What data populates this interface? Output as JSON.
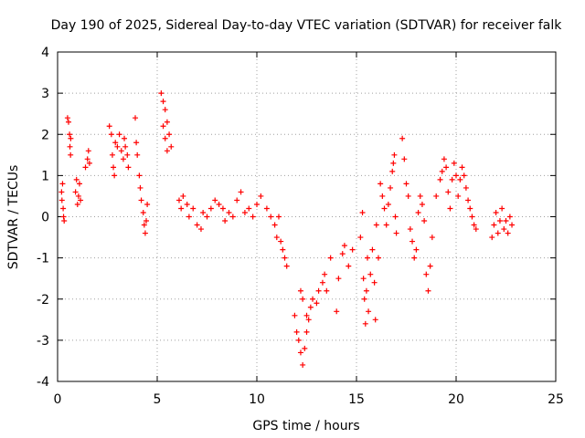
{
  "chart_data": {
    "type": "scatter",
    "title": "Day 190 of 2025, Sidereal Day-to-day VTEC variation (SDTVAR) for receiver falk",
    "xlabel": "GPS time / hours",
    "ylabel": "SDTVAR / TECUs",
    "xlim": [
      0,
      25
    ],
    "ylim": [
      -4,
      4
    ],
    "x_ticks": [
      0,
      5,
      10,
      15,
      20,
      25
    ],
    "x_tick_labels": [
      "0",
      "5",
      "10",
      "15",
      "20",
      "25"
    ],
    "y_ticks": [
      -4,
      -3,
      -2,
      -1,
      0,
      1,
      2,
      3,
      4
    ],
    "y_tick_labels": [
      "-4",
      "-3",
      "-2",
      "-1",
      "0",
      "1",
      "2",
      "3",
      "4"
    ],
    "grid": true,
    "marker": "+",
    "series": [
      {
        "name": "SDTVAR",
        "color": "#ff0000",
        "points": [
          [
            0.2,
            0.6
          ],
          [
            0.22,
            0.4
          ],
          [
            0.25,
            0.8
          ],
          [
            0.28,
            0.2
          ],
          [
            0.3,
            0.0
          ],
          [
            0.33,
            -0.1
          ],
          [
            0.5,
            2.4
          ],
          [
            0.55,
            2.3
          ],
          [
            0.6,
            2.0
          ],
          [
            0.62,
            1.7
          ],
          [
            0.65,
            1.5
          ],
          [
            0.66,
            1.9
          ],
          [
            0.9,
            0.6
          ],
          [
            0.95,
            0.9
          ],
          [
            1.0,
            0.3
          ],
          [
            1.05,
            0.5
          ],
          [
            1.1,
            0.8
          ],
          [
            1.15,
            0.4
          ],
          [
            1.4,
            1.2
          ],
          [
            1.5,
            1.4
          ],
          [
            1.55,
            1.6
          ],
          [
            1.6,
            1.3
          ],
          [
            2.6,
            2.2
          ],
          [
            2.7,
            2.0
          ],
          [
            2.75,
            1.5
          ],
          [
            2.8,
            1.2
          ],
          [
            2.85,
            1.0
          ],
          [
            2.9,
            1.8
          ],
          [
            3.0,
            1.7
          ],
          [
            3.1,
            2.0
          ],
          [
            3.2,
            1.6
          ],
          [
            3.3,
            1.4
          ],
          [
            3.35,
            1.9
          ],
          [
            3.4,
            1.7
          ],
          [
            3.5,
            1.5
          ],
          [
            3.55,
            1.2
          ],
          [
            3.9,
            2.4
          ],
          [
            3.95,
            1.8
          ],
          [
            4.0,
            1.5
          ],
          [
            4.1,
            1.0
          ],
          [
            4.15,
            0.7
          ],
          [
            4.2,
            0.4
          ],
          [
            4.3,
            0.1
          ],
          [
            4.35,
            -0.2
          ],
          [
            4.4,
            -0.4
          ],
          [
            4.45,
            -0.1
          ],
          [
            4.5,
            0.3
          ],
          [
            5.2,
            3.0
          ],
          [
            5.3,
            2.8
          ],
          [
            5.4,
            2.6
          ],
          [
            5.5,
            2.3
          ],
          [
            5.6,
            2.0
          ],
          [
            5.7,
            1.7
          ],
          [
            5.3,
            2.2
          ],
          [
            5.4,
            1.9
          ],
          [
            5.5,
            1.6
          ],
          [
            6.1,
            0.4
          ],
          [
            6.2,
            0.2
          ],
          [
            6.3,
            0.5
          ],
          [
            6.5,
            0.3
          ],
          [
            6.6,
            0.0
          ],
          [
            6.8,
            0.2
          ],
          [
            7.0,
            -0.2
          ],
          [
            7.2,
            -0.3
          ],
          [
            7.3,
            0.1
          ],
          [
            7.5,
            0.0
          ],
          [
            7.7,
            0.2
          ],
          [
            7.9,
            0.4
          ],
          [
            8.1,
            0.3
          ],
          [
            8.3,
            0.2
          ],
          [
            8.4,
            -0.1
          ],
          [
            8.6,
            0.1
          ],
          [
            8.8,
            0.0
          ],
          [
            9.0,
            0.4
          ],
          [
            9.2,
            0.6
          ],
          [
            9.4,
            0.1
          ],
          [
            9.6,
            0.2
          ],
          [
            9.8,
            0.0
          ],
          [
            10.0,
            0.3
          ],
          [
            10.2,
            0.5
          ],
          [
            10.5,
            0.2
          ],
          [
            10.7,
            0.0
          ],
          [
            10.9,
            -0.2
          ],
          [
            11.0,
            -0.5
          ],
          [
            11.1,
            0.0
          ],
          [
            11.2,
            -0.6
          ],
          [
            11.3,
            -0.8
          ],
          [
            11.4,
            -1.0
          ],
          [
            11.5,
            -1.2
          ],
          [
            11.9,
            -2.4
          ],
          [
            12.0,
            -2.8
          ],
          [
            12.1,
            -3.0
          ],
          [
            12.2,
            -3.3
          ],
          [
            12.3,
            -3.6
          ],
          [
            12.4,
            -3.2
          ],
          [
            12.5,
            -2.8
          ],
          [
            12.6,
            -2.5
          ],
          [
            12.7,
            -2.2
          ],
          [
            12.5,
            -2.4
          ],
          [
            12.3,
            -2.0
          ],
          [
            12.2,
            -1.8
          ],
          [
            12.8,
            -2.0
          ],
          [
            13.0,
            -2.1
          ],
          [
            13.1,
            -1.8
          ],
          [
            13.3,
            -1.6
          ],
          [
            13.4,
            -1.4
          ],
          [
            13.5,
            -1.8
          ],
          [
            13.7,
            -1.0
          ],
          [
            14.0,
            -2.3
          ],
          [
            14.1,
            -1.5
          ],
          [
            14.3,
            -0.9
          ],
          [
            14.4,
            -0.7
          ],
          [
            14.6,
            -1.2
          ],
          [
            14.8,
            -0.8
          ],
          [
            15.2,
            -0.5
          ],
          [
            15.3,
            0.1
          ],
          [
            15.35,
            -1.5
          ],
          [
            15.4,
            -2.0
          ],
          [
            15.45,
            -2.6
          ],
          [
            15.5,
            -1.8
          ],
          [
            15.55,
            -1.0
          ],
          [
            15.6,
            -2.3
          ],
          [
            15.7,
            -1.4
          ],
          [
            15.8,
            -0.8
          ],
          [
            15.9,
            -1.6
          ],
          [
            15.95,
            -2.5
          ],
          [
            16.0,
            -0.2
          ],
          [
            16.1,
            -1.0
          ],
          [
            16.2,
            0.8
          ],
          [
            16.3,
            0.5
          ],
          [
            16.4,
            0.2
          ],
          [
            16.5,
            -0.2
          ],
          [
            16.6,
            0.3
          ],
          [
            16.7,
            0.7
          ],
          [
            16.8,
            1.1
          ],
          [
            16.9,
            1.5
          ],
          [
            16.85,
            1.3
          ],
          [
            16.95,
            0.0
          ],
          [
            17.0,
            -0.4
          ],
          [
            17.3,
            1.9
          ],
          [
            17.4,
            1.4
          ],
          [
            17.5,
            0.8
          ],
          [
            17.6,
            0.5
          ],
          [
            17.7,
            -0.3
          ],
          [
            17.8,
            -0.6
          ],
          [
            17.9,
            -1.0
          ],
          [
            18.0,
            -0.8
          ],
          [
            18.1,
            0.1
          ],
          [
            18.2,
            0.5
          ],
          [
            18.3,
            0.3
          ],
          [
            18.4,
            -0.1
          ],
          [
            18.5,
            -1.4
          ],
          [
            18.6,
            -1.8
          ],
          [
            18.7,
            -1.2
          ],
          [
            18.8,
            -0.5
          ],
          [
            19.0,
            0.5
          ],
          [
            19.2,
            0.9
          ],
          [
            19.3,
            1.1
          ],
          [
            19.4,
            1.4
          ],
          [
            19.5,
            1.2
          ],
          [
            19.6,
            0.6
          ],
          [
            19.7,
            0.2
          ],
          [
            19.8,
            0.9
          ],
          [
            19.9,
            1.3
          ],
          [
            20.0,
            1.0
          ],
          [
            20.1,
            0.5
          ],
          [
            20.2,
            0.9
          ],
          [
            20.3,
            1.2
          ],
          [
            20.4,
            1.0
          ],
          [
            20.5,
            0.7
          ],
          [
            20.6,
            0.4
          ],
          [
            20.7,
            0.2
          ],
          [
            20.8,
            0.0
          ],
          [
            20.9,
            -0.2
          ],
          [
            21.0,
            -0.3
          ],
          [
            21.8,
            -0.5
          ],
          [
            21.9,
            -0.2
          ],
          [
            22.0,
            0.1
          ],
          [
            22.1,
            -0.4
          ],
          [
            22.2,
            -0.1
          ],
          [
            22.3,
            0.2
          ],
          [
            22.4,
            -0.3
          ],
          [
            22.5,
            -0.1
          ],
          [
            22.6,
            -0.4
          ],
          [
            22.7,
            0.0
          ],
          [
            22.8,
            -0.2
          ]
        ]
      }
    ]
  }
}
